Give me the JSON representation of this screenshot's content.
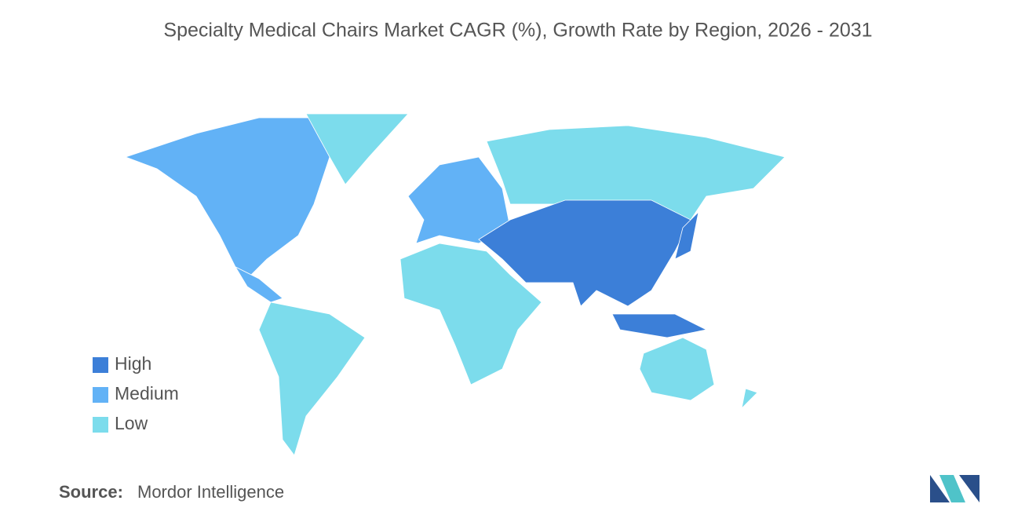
{
  "title": "Specialty Medical Chairs Market CAGR (%), Growth Rate by Region, 2026 - 2031",
  "legend": [
    {
      "label": "High",
      "color": "#3c7fd8"
    },
    {
      "label": "Medium",
      "color": "#62b2f6"
    },
    {
      "label": "Low",
      "color": "#7cdcec"
    }
  ],
  "source": {
    "label": "Source:",
    "text": "Mordor Intelligence"
  }
}
